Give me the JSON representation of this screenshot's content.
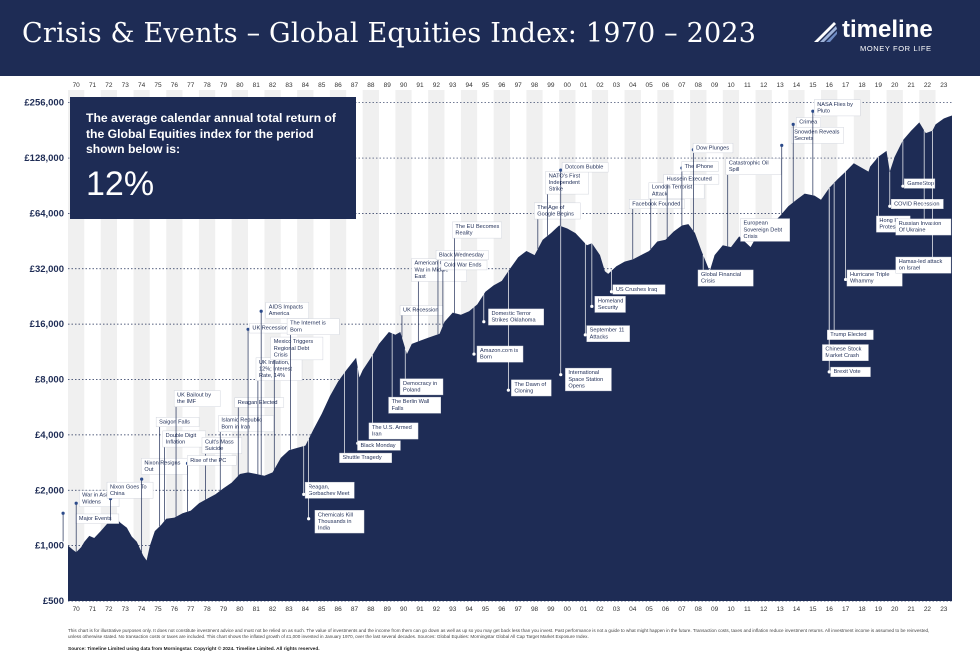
{
  "header": {
    "title": "Crisis & Events – Global Equities Index: 1970 – 2023",
    "logo_name": "timeline",
    "logo_tagline": "MONEY FOR LIFE",
    "logo_icon": "feather-stripes-icon"
  },
  "info_box": {
    "text": "The average calendar annual total return of the Global Equities index for the period shown below is:",
    "value": "12%"
  },
  "colors": {
    "navy": "#1e2c55",
    "band": "#f0f0f0",
    "line": "#ffffff"
  },
  "chart_data": {
    "type": "area",
    "scale": "log",
    "ylim": [
      500,
      300000
    ],
    "xlim": [
      1970,
      2024
    ],
    "y_ticks": [
      {
        "value": 500,
        "label": "£500"
      },
      {
        "value": 1000,
        "label": "£1,000"
      },
      {
        "value": 2000,
        "label": "£2,000"
      },
      {
        "value": 4000,
        "label": "£4,000"
      },
      {
        "value": 8000,
        "label": "£8,000"
      },
      {
        "value": 16000,
        "label": "£16,000"
      },
      {
        "value": 32000,
        "label": "£32,000"
      },
      {
        "value": 64000,
        "label": "£64,000"
      },
      {
        "value": 128000,
        "label": "£128,000"
      },
      {
        "value": 256000,
        "label": "£256,000"
      }
    ],
    "year_labels": [
      "70",
      "71",
      "72",
      "73",
      "74",
      "75",
      "76",
      "77",
      "78",
      "79",
      "80",
      "81",
      "82",
      "83",
      "84",
      "85",
      "86",
      "87",
      "88",
      "89",
      "90",
      "91",
      "92",
      "93",
      "94",
      "95",
      "96",
      "97",
      "98",
      "99",
      "00",
      "01",
      "02",
      "03",
      "04",
      "05",
      "06",
      "07",
      "08",
      "09",
      "10",
      "11",
      "12",
      "13",
      "14",
      "15",
      "16",
      "17",
      "18",
      "19",
      "20",
      "21",
      "22",
      "23"
    ],
    "series": [
      {
        "points": [
          [
            1970.0,
            1000
          ],
          [
            1970.3,
            950
          ],
          [
            1970.5,
            920
          ],
          [
            1970.8,
            980
          ],
          [
            1971.0,
            1050
          ],
          [
            1971.3,
            1130
          ],
          [
            1971.6,
            1100
          ],
          [
            1972.0,
            1200
          ],
          [
            1972.5,
            1350
          ],
          [
            1972.9,
            1420
          ],
          [
            1973.2,
            1330
          ],
          [
            1973.6,
            1250
          ],
          [
            1973.9,
            1120
          ],
          [
            1974.2,
            1050
          ],
          [
            1974.6,
            880
          ],
          [
            1974.8,
            830
          ],
          [
            1975.0,
            1000
          ],
          [
            1975.3,
            1200
          ],
          [
            1975.7,
            1300
          ],
          [
            1976.0,
            1400
          ],
          [
            1976.5,
            1420
          ],
          [
            1977.0,
            1500
          ],
          [
            1977.5,
            1550
          ],
          [
            1978.0,
            1700
          ],
          [
            1978.5,
            1800
          ],
          [
            1979.0,
            1900
          ],
          [
            1979.5,
            2050
          ],
          [
            1980.0,
            2200
          ],
          [
            1980.5,
            2450
          ],
          [
            1981.0,
            2500
          ],
          [
            1981.5,
            2450
          ],
          [
            1982.0,
            2400
          ],
          [
            1982.5,
            2500
          ],
          [
            1983.0,
            3000
          ],
          [
            1983.5,
            3300
          ],
          [
            1984.0,
            3400
          ],
          [
            1984.5,
            3500
          ],
          [
            1985.0,
            4300
          ],
          [
            1985.5,
            5200
          ],
          [
            1986.0,
            6500
          ],
          [
            1986.5,
            7800
          ],
          [
            1987.0,
            9000
          ],
          [
            1987.6,
            10500
          ],
          [
            1987.8,
            8200
          ],
          [
            1988.0,
            9000
          ],
          [
            1988.5,
            10500
          ],
          [
            1989.0,
            12500
          ],
          [
            1989.6,
            14500
          ],
          [
            1990.0,
            14000
          ],
          [
            1990.3,
            14500
          ],
          [
            1990.7,
            11000
          ],
          [
            1991.0,
            12500
          ],
          [
            1991.5,
            13000
          ],
          [
            1992.0,
            13500
          ],
          [
            1992.7,
            14200
          ],
          [
            1993.0,
            16500
          ],
          [
            1993.5,
            18500
          ],
          [
            1994.0,
            18000
          ],
          [
            1994.5,
            18800
          ],
          [
            1995.0,
            20500
          ],
          [
            1995.5,
            24000
          ],
          [
            1996.0,
            26000
          ],
          [
            1996.5,
            27500
          ],
          [
            1997.0,
            32000
          ],
          [
            1997.5,
            37000
          ],
          [
            1998.0,
            40000
          ],
          [
            1998.5,
            38000
          ],
          [
            1999.0,
            46000
          ],
          [
            1999.5,
            50000
          ],
          [
            2000.0,
            55000
          ],
          [
            2000.5,
            53000
          ],
          [
            2001.0,
            50000
          ],
          [
            2001.7,
            43000
          ],
          [
            2002.0,
            44000
          ],
          [
            2002.5,
            38000
          ],
          [
            2002.8,
            31000
          ],
          [
            2003.0,
            30000
          ],
          [
            2003.5,
            33000
          ],
          [
            2004.0,
            35000
          ],
          [
            2004.5,
            36000
          ],
          [
            2005.0,
            38000
          ],
          [
            2005.5,
            40000
          ],
          [
            2006.0,
            45000
          ],
          [
            2006.5,
            46000
          ],
          [
            2007.0,
            51000
          ],
          [
            2007.5,
            55000
          ],
          [
            2007.9,
            56000
          ],
          [
            2008.3,
            50000
          ],
          [
            2008.7,
            40000
          ],
          [
            2009.2,
            31000
          ],
          [
            2009.5,
            38000
          ],
          [
            2010.0,
            43000
          ],
          [
            2010.5,
            42000
          ],
          [
            2011.0,
            48000
          ],
          [
            2011.7,
            42000
          ],
          [
            2012.0,
            47000
          ],
          [
            2012.5,
            50000
          ],
          [
            2013.0,
            56000
          ],
          [
            2013.5,
            62000
          ],
          [
            2014.0,
            70000
          ],
          [
            2014.5,
            76000
          ],
          [
            2015.0,
            82000
          ],
          [
            2015.6,
            80000
          ],
          [
            2016.0,
            76000
          ],
          [
            2016.5,
            88000
          ],
          [
            2017.0,
            98000
          ],
          [
            2017.5,
            108000
          ],
          [
            2018.0,
            120000
          ],
          [
            2018.9,
            108000
          ],
          [
            2019.0,
            115000
          ],
          [
            2019.5,
            130000
          ],
          [
            2020.0,
            140000
          ],
          [
            2020.2,
            108000
          ],
          [
            2020.5,
            130000
          ],
          [
            2021.0,
            160000
          ],
          [
            2021.5,
            180000
          ],
          [
            2022.0,
            200000
          ],
          [
            2022.4,
            175000
          ],
          [
            2022.8,
            180000
          ],
          [
            2023.0,
            195000
          ],
          [
            2023.5,
            210000
          ],
          [
            2023.8,
            215000
          ],
          [
            2024.0,
            218000
          ]
        ]
      }
    ],
    "annotations": [
      {
        "text": "Major Events",
        "x": 1970.3,
        "y": 1400,
        "lx": 1969.7,
        "ly": 1500
      },
      {
        "text": "War in Asia Widens",
        "x": 1970.5,
        "y": 1800,
        "lx": 1970.5,
        "ly": 1700
      },
      {
        "text": "Nixon Goes To China",
        "x": 1972.2,
        "y": 2000,
        "lx": 1972.6,
        "ly": 1800
      },
      {
        "text": "Nixon Resigns Out",
        "x": 1974.3,
        "y": 2700,
        "lx": 1974.5,
        "ly": 2300
      },
      {
        "text": "Saigon Falls",
        "x": 1975.2,
        "y": 4700,
        "lx": 1975.6,
        "ly": 4700
      },
      {
        "text": "Double Digit Inflation",
        "x": 1975.6,
        "y": 3800,
        "lx": 1975.9,
        "ly": 3600
      },
      {
        "text": "UK Bailout by the IMF",
        "x": 1976.3,
        "y": 6300,
        "lx": 1976.6,
        "ly": 6000
      },
      {
        "text": "Cult's Mass Suicide",
        "x": 1978.0,
        "y": 3500,
        "lx": 1978.4,
        "ly": 3400
      },
      {
        "text": "Rise of the PC",
        "x": 1977.1,
        "y": 2900,
        "lx": 1977.3,
        "ly": 2800
      },
      {
        "text": "Islamic Republic Born in Iran",
        "x": 1979.0,
        "y": 4600,
        "lx": 1979.3,
        "ly": 4700
      },
      {
        "text": "Reagan Elected",
        "x": 1980.0,
        "y": 6000,
        "lx": 1980.4,
        "ly": 6100
      },
      {
        "text": "UK Inflation, 12%; Interest Rate, 14%",
        "x": 1981.3,
        "y": 9100,
        "lx": 1981.6,
        "ly": 8700
      },
      {
        "text": "Mexico Triggers Regional Debt Crisis",
        "x": 1982.2,
        "y": 11800,
        "lx": 1982.6,
        "ly": 11500
      },
      {
        "text": "UK Recession",
        "x": 1980.9,
        "y": 15200,
        "lx": 1981.0,
        "ly": 15000
      },
      {
        "text": "AIDS Impacts America",
        "x": 1981.9,
        "y": 19000,
        "lx": 1981.8,
        "ly": 18800
      },
      {
        "text": "The Internet is Born",
        "x": 1983.2,
        "y": 15500,
        "lx": 1983.6,
        "ly": 14500
      },
      {
        "text": "Reagan, Gorbachev Meet",
        "x": 1984.3,
        "y": 2000,
        "lx": 1984.4,
        "ly": 1900
      },
      {
        "text": "Chemicals Kill Thousands in India",
        "x": 1984.9,
        "y": 1350,
        "lx": 1984.7,
        "ly": 1400
      },
      {
        "text": "Shuttle Tragedy",
        "x": 1986.4,
        "y": 3000,
        "lx": 1986.9,
        "ly": 3100
      },
      {
        "text": "Black Monday",
        "x": 1987.5,
        "y": 3500,
        "lx": 1987.7,
        "ly": 3600
      },
      {
        "text": "The U.S. Armed Iran",
        "x": 1988.2,
        "y": 4200,
        "lx": 1988.6,
        "ly": 4300
      },
      {
        "text": "The Berlin Wall Falls",
        "x": 1989.4,
        "y": 5800,
        "lx": 1989.8,
        "ly": 5800
      },
      {
        "text": "Democracy in Poland",
        "x": 1990.1,
        "y": 7300,
        "lx": 1990.6,
        "ly": 7300
      },
      {
        "text": "UK Recession",
        "x": 1990.1,
        "y": 19000,
        "lx": 1990.4,
        "ly": 19500
      },
      {
        "text": "American Goes to War in Middle East",
        "x": 1990.8,
        "y": 31500,
        "lx": 1991.4,
        "ly": 30000
      },
      {
        "text": "Black Wednesday",
        "x": 1992.3,
        "y": 38000,
        "lx": 1992.6,
        "ly": 37500
      },
      {
        "text": "Cold War Ends",
        "x": 1992.6,
        "y": 33500,
        "lx": 1992.9,
        "ly": 34000
      },
      {
        "text": "The EU Becomes Reality",
        "x": 1993.3,
        "y": 52000,
        "lx": 1993.6,
        "ly": 50000
      },
      {
        "text": "Amazon.com is Born",
        "x": 1994.8,
        "y": 11000,
        "lx": 1994.8,
        "ly": 11000
      },
      {
        "text": "Domestic Terror Strikes Oklahoma",
        "x": 1995.5,
        "y": 17500,
        "lx": 1995.4,
        "ly": 16500
      },
      {
        "text": "The Dawn of Cloning",
        "x": 1996.9,
        "y": 7200,
        "lx": 1996.9,
        "ly": 7000
      },
      {
        "text": "The Age of Google Begins",
        "x": 1998.3,
        "y": 66000,
        "lx": 1998.7,
        "ly": 64000
      },
      {
        "text": "NATO's First Independent Strike",
        "x": 1999.0,
        "y": 94000,
        "lx": 1999.3,
        "ly": 92000
      },
      {
        "text": "Dotcom Bubble",
        "x": 2000.0,
        "y": 114000,
        "lx": 2000.1,
        "ly": 110000
      },
      {
        "text": "International Space Station Opens",
        "x": 2000.2,
        "y": 8000,
        "lx": 2000.1,
        "ly": 8500
      },
      {
        "text": "September 11 Attacks",
        "x": 2001.5,
        "y": 14200,
        "lx": 2001.6,
        "ly": 14000
      },
      {
        "text": "Homeland Security",
        "x": 2002.0,
        "y": 20500,
        "lx": 2002.0,
        "ly": 20000
      },
      {
        "text": "US Crushes Iraq",
        "x": 2003.1,
        "y": 24700,
        "lx": 2003.2,
        "ly": 24000
      },
      {
        "text": "Facebook Founded",
        "x": 2004.1,
        "y": 72000,
        "lx": 2004.5,
        "ly": 71000
      },
      {
        "text": "London Terrorist Attack",
        "x": 2005.3,
        "y": 85000,
        "lx": 2005.6,
        "ly": 83000
      },
      {
        "text": "Hussein Executed",
        "x": 2006.2,
        "y": 98000,
        "lx": 2006.6,
        "ly": 96000
      },
      {
        "text": "The iPhone",
        "x": 2007.3,
        "y": 115000,
        "lx": 2007.5,
        "ly": 113000
      },
      {
        "text": "Dow Plunges",
        "x": 2008.0,
        "y": 145000,
        "lx": 2008.2,
        "ly": 142000
      },
      {
        "text": "Global Financial Crisis",
        "x": 2008.3,
        "y": 28500,
        "lx": 2008.8,
        "ly": 30000
      },
      {
        "text": "Catastrophic Oil Spill",
        "x": 2010.0,
        "y": 115000,
        "lx": 2010.3,
        "ly": 113000
      },
      {
        "text": "European Sovereign Debt Crisis",
        "x": 2010.9,
        "y": 52000,
        "lx": 2011.2,
        "ly": 54000
      },
      {
        "text": "Snowden Reveals Secrets",
        "x": 2014.0,
        "y": 170000,
        "lx": 2013.6,
        "ly": 150000
      },
      {
        "text": "Crimea",
        "x": 2014.3,
        "y": 200000,
        "lx": 2014.3,
        "ly": 195000
      },
      {
        "text": "NASA Flies by Pluto",
        "x": 2015.4,
        "y": 240000,
        "lx": 2015.5,
        "ly": 230000
      },
      {
        "text": "Hong Kong Protests",
        "x": 2019.2,
        "y": 56000,
        "lx": 2019.5,
        "ly": 56000
      },
      {
        "text": "Hurricane Triple Whammy",
        "x": 2017.4,
        "y": 28500,
        "lx": 2017.5,
        "ly": 28000
      },
      {
        "text": "Trump Elected",
        "x": 2016.2,
        "y": 14000,
        "lx": 2016.8,
        "ly": 14000
      },
      {
        "text": "Chinese Stock Market Crash",
        "x": 2015.9,
        "y": 11200,
        "lx": 2016.5,
        "ly": 11000
      },
      {
        "text": "Brexit Vote",
        "x": 2016.4,
        "y": 8800,
        "lx": 2016.5,
        "ly": 8800
      },
      {
        "text": "GameStop",
        "x": 2020.9,
        "y": 93000,
        "lx": 2021.0,
        "ly": 90000
      },
      {
        "text": "COVID Recession",
        "x": 2020.1,
        "y": 72000,
        "lx": 2020.2,
        "ly": 70000
      },
      {
        "text": "Russian Invasion Of Ukraine",
        "x": 2022.1,
        "y": 54000,
        "lx": 2022.3,
        "ly": 53000
      },
      {
        "text": "Hamas-led attack on Israel",
        "x": 2022.7,
        "y": 33500,
        "lx": 2022.8,
        "ly": 32000
      }
    ]
  },
  "footer": {
    "disclaimer": "This chart is for illustrative purposes only. It does not constitute investment advice and must not be relied on as such. The value of investments and the income from them can go down as well as up so you may get back less than you invest. Past performance is not a guide to what might happen in the future. Transaction costs, taxes and inflation reduce investment returns. All investment income is assumed to be reinvested, unless otherwise stated. No transaction costs or taxes are included. This chart shows the inflated growth of £1,000 invested in January 1970, over the last several decades. Sources: Global Equities: Morningstar Global All Cap Target Market Exposure Index.",
    "source": "Source: Timeline Limited using data from Morningstar. Copyright © 2024. Timeline Limited. All rights reserved."
  }
}
